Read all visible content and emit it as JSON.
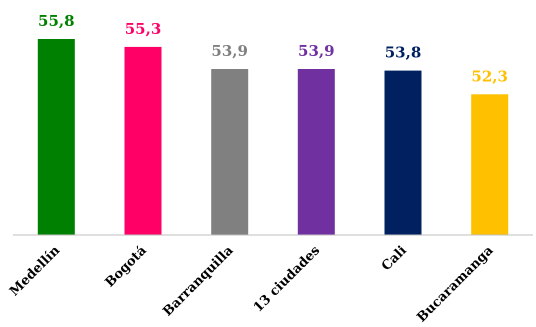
{
  "chart_data": {
    "type": "bar",
    "categories": [
      "Medellín",
      "Bogotá",
      "Barranquilla",
      "13 ciudades",
      "Cali",
      "Bucaramanga"
    ],
    "values": [
      55.8,
      55.3,
      53.9,
      53.9,
      53.8,
      52.3
    ],
    "value_labels": [
      "55,8",
      "55,3",
      "53,9",
      "53,9",
      "53,8",
      "52,3"
    ],
    "colors": [
      "#008000",
      "#ff0066",
      "#808080",
      "#7030a0",
      "#002060",
      "#ffc000"
    ],
    "title": "",
    "xlabel": "",
    "ylabel": "",
    "ylim": [
      43.4,
      57.0
    ],
    "grid": false,
    "legend": "none"
  }
}
